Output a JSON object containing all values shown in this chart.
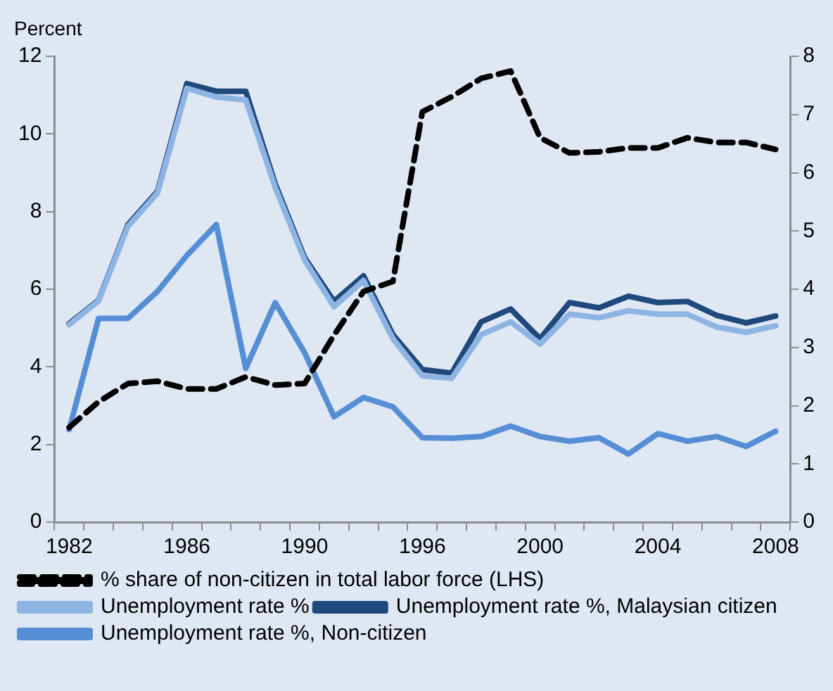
{
  "chart_data": {
    "type": "line",
    "ylabel": "Percent",
    "categories": [
      "1982",
      null,
      null,
      null,
      "1986",
      null,
      null,
      null,
      "1990",
      null,
      null,
      null,
      "1996",
      null,
      null,
      null,
      "2000",
      null,
      null,
      null,
      "2004",
      null,
      null,
      null,
      "2008"
    ],
    "series": [
      {
        "name": "% share of non-citizen in total labor force (LHS)",
        "color": "#000000",
        "line_style": "dashed",
        "values": [
          2.44,
          3.1,
          3.57,
          3.63,
          3.43,
          3.43,
          3.74,
          3.53,
          3.57,
          4.82,
          5.94,
          6.2,
          10.57,
          10.96,
          11.43,
          11.62,
          9.9,
          9.51,
          9.54,
          9.64,
          9.64,
          9.9,
          9.78,
          9.78,
          9.6
        ]
      },
      {
        "name": "Unemployment rate %",
        "color": "#8db4e2",
        "axis": "y2",
        "values": [
          3.39,
          3.8,
          5.08,
          5.65,
          7.45,
          7.3,
          7.25,
          5.75,
          4.5,
          3.7,
          4.15,
          3.15,
          2.51,
          2.47,
          3.22,
          3.44,
          3.06,
          3.57,
          3.51,
          3.63,
          3.57,
          3.57,
          3.35,
          3.26,
          3.37
        ]
      },
      {
        "name": "Unemployment rate %, Malaysian citizen",
        "color": "#1f497d",
        "axis": "y2",
        "values": [
          3.41,
          3.81,
          5.11,
          5.68,
          7.53,
          7.4,
          7.4,
          5.81,
          4.54,
          3.79,
          4.23,
          3.22,
          2.62,
          2.56,
          3.44,
          3.66,
          3.15,
          3.77,
          3.68,
          3.88,
          3.77,
          3.79,
          3.55,
          3.42,
          3.54
        ]
      },
      {
        "name": "Unemployment rate %, Non-citizen",
        "color": "#558ed5",
        "axis": "y2",
        "values": [
          1.59,
          3.5,
          3.5,
          3.96,
          4.58,
          5.11,
          2.64,
          3.77,
          2.91,
          1.81,
          2.14,
          1.98,
          1.45,
          1.44,
          1.47,
          1.65,
          1.47,
          1.39,
          1.45,
          1.17,
          1.52,
          1.39,
          1.47,
          1.3,
          1.56
        ]
      }
    ],
    "ylim": [
      0,
      12
    ],
    "yticks": [
      0,
      2,
      4,
      6,
      8,
      10,
      12
    ],
    "y2lim": [
      0,
      8
    ],
    "y2ticks": [
      0,
      1,
      2,
      3,
      4,
      5,
      6,
      7,
      8
    ],
    "grid": false,
    "legend": "bottom",
    "marker": "none"
  }
}
